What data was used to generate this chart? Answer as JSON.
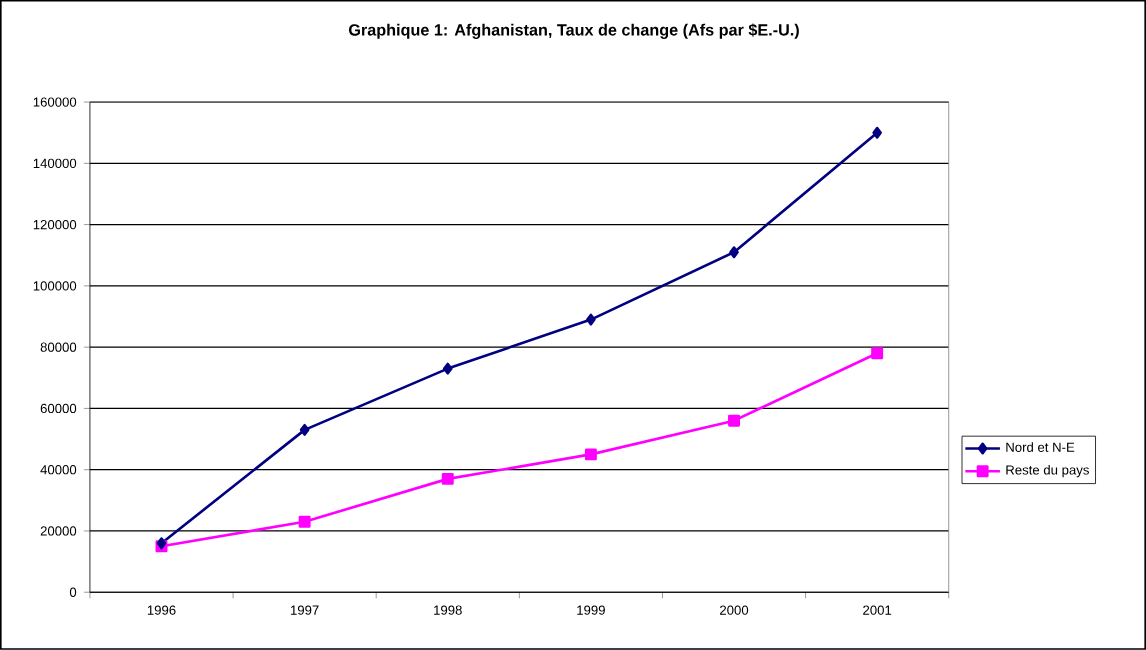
{
  "chart_data": {
    "type": "line",
    "title": "Graphique  1: Afghanistan, Taux de change (Afs par $E.-U.)",
    "categories": [
      "1996",
      "1997",
      "1998",
      "1999",
      "2000",
      "2001"
    ],
    "series": [
      {
        "name": "Nord et N-E",
        "color": "#000080",
        "marker": "diamond",
        "values": [
          16000,
          53000,
          73000,
          89000,
          111000,
          150000
        ]
      },
      {
        "name": "Reste du pays",
        "color": "#ff00ff",
        "marker": "square",
        "values": [
          15000,
          23000,
          37000,
          45000,
          56000,
          78000
        ]
      }
    ],
    "ylim": [
      0,
      160000
    ],
    "yticks": [
      0,
      20000,
      40000,
      60000,
      80000,
      100000,
      120000,
      140000,
      160000
    ],
    "grid": "y",
    "legend": "right"
  }
}
